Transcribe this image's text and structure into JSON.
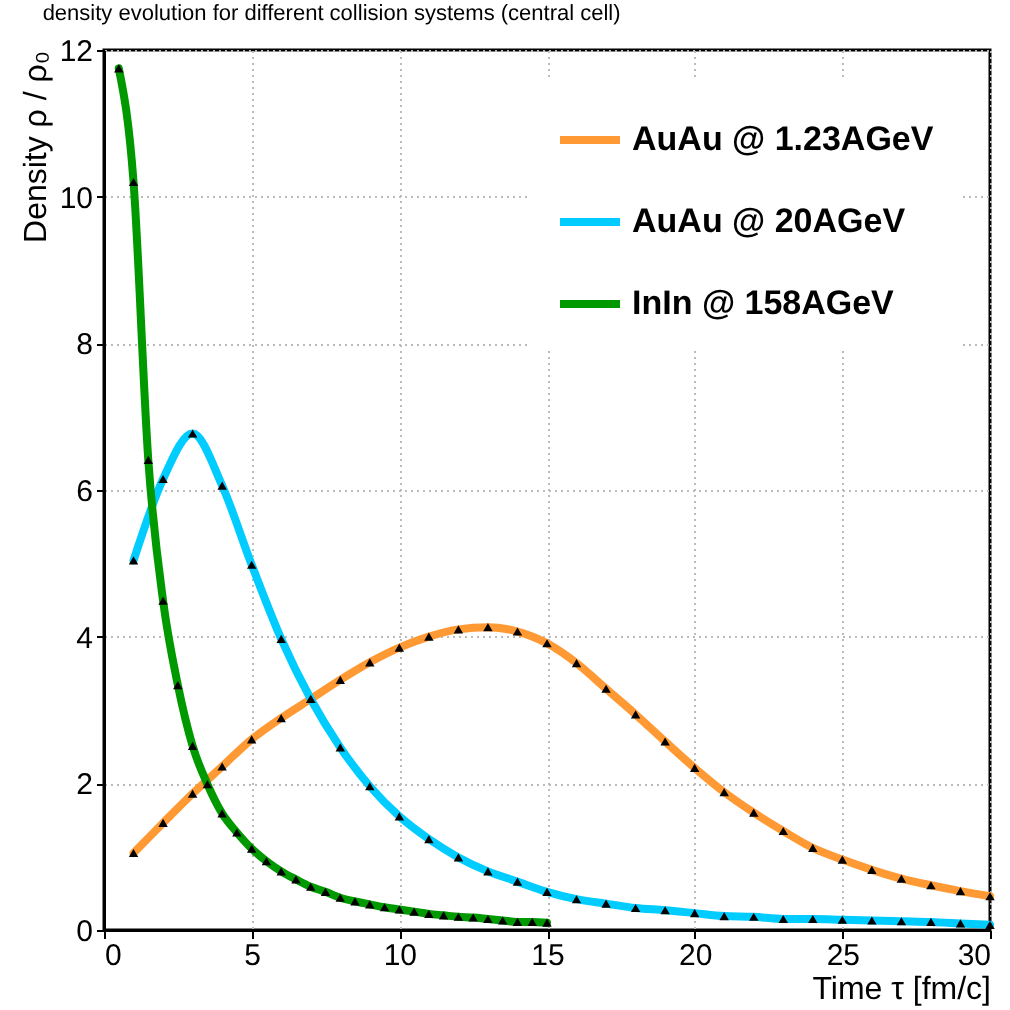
{
  "chart_data": {
    "type": "line",
    "title": "density evolution for different collision systems (central cell)",
    "xlabel": "Time τ [fm/c]",
    "ylabel": "Density ρ / ρ₀",
    "xlim": [
      0,
      30
    ],
    "xticks": [
      0,
      5,
      10,
      15,
      20,
      25,
      30
    ],
    "ylim": [
      0,
      12
    ],
    "yticks": [
      0,
      2,
      4,
      6,
      8,
      10,
      12
    ],
    "grid": true,
    "legend": "top right",
    "marker": "triangle",
    "line_style": "solid",
    "series": [
      {
        "name": "AuAu @ 1.23AGeV",
        "color": "#ff9933",
        "x": [
          1,
          2,
          3,
          4,
          5,
          6,
          7,
          8,
          9,
          10,
          11,
          12,
          13,
          14,
          15,
          16,
          17,
          18,
          19,
          20,
          21,
          22,
          23,
          24,
          25,
          26,
          27,
          28,
          29,
          30
        ],
        "values": [
          1.05,
          1.46,
          1.86,
          2.23,
          2.6,
          2.89,
          3.15,
          3.41,
          3.65,
          3.85,
          4.0,
          4.1,
          4.13,
          4.07,
          3.91,
          3.64,
          3.29,
          2.94,
          2.57,
          2.21,
          1.88,
          1.6,
          1.35,
          1.12,
          0.96,
          0.82,
          0.7,
          0.61,
          0.53,
          0.46
        ]
      },
      {
        "name": "AuAu @ 20AGeV",
        "color": "#00ccff",
        "x": [
          1,
          2,
          3,
          4,
          5,
          6,
          7,
          8,
          9,
          10,
          11,
          12,
          13,
          14,
          15,
          16,
          17,
          18,
          19,
          20,
          21,
          22,
          23,
          24,
          25,
          26,
          27,
          28,
          29,
          30
        ],
        "values": [
          5.04,
          6.15,
          6.77,
          6.06,
          4.98,
          3.97,
          3.15,
          2.49,
          1.96,
          1.55,
          1.24,
          0.99,
          0.8,
          0.66,
          0.52,
          0.42,
          0.36,
          0.3,
          0.27,
          0.23,
          0.19,
          0.18,
          0.15,
          0.15,
          0.14,
          0.13,
          0.12,
          0.11,
          0.09,
          0.07
        ]
      },
      {
        "name": "InIn @ 158AGeV",
        "color": "#009900",
        "x": [
          0.5,
          1,
          1.5,
          2,
          2.5,
          3,
          3.5,
          4,
          4.5,
          5,
          5.5,
          6,
          6.5,
          7,
          7.5,
          8,
          8.5,
          9,
          9.5,
          10,
          10.5,
          11,
          11.5,
          12,
          12.5,
          13,
          13.5,
          14,
          14.5,
          15
        ],
        "values": [
          11.75,
          10.2,
          6.41,
          4.49,
          3.34,
          2.51,
          1.99,
          1.59,
          1.33,
          1.11,
          0.94,
          0.8,
          0.69,
          0.59,
          0.52,
          0.44,
          0.39,
          0.35,
          0.31,
          0.28,
          0.25,
          0.22,
          0.2,
          0.18,
          0.17,
          0.15,
          0.13,
          0.11,
          0.11,
          0.1
        ]
      }
    ]
  }
}
